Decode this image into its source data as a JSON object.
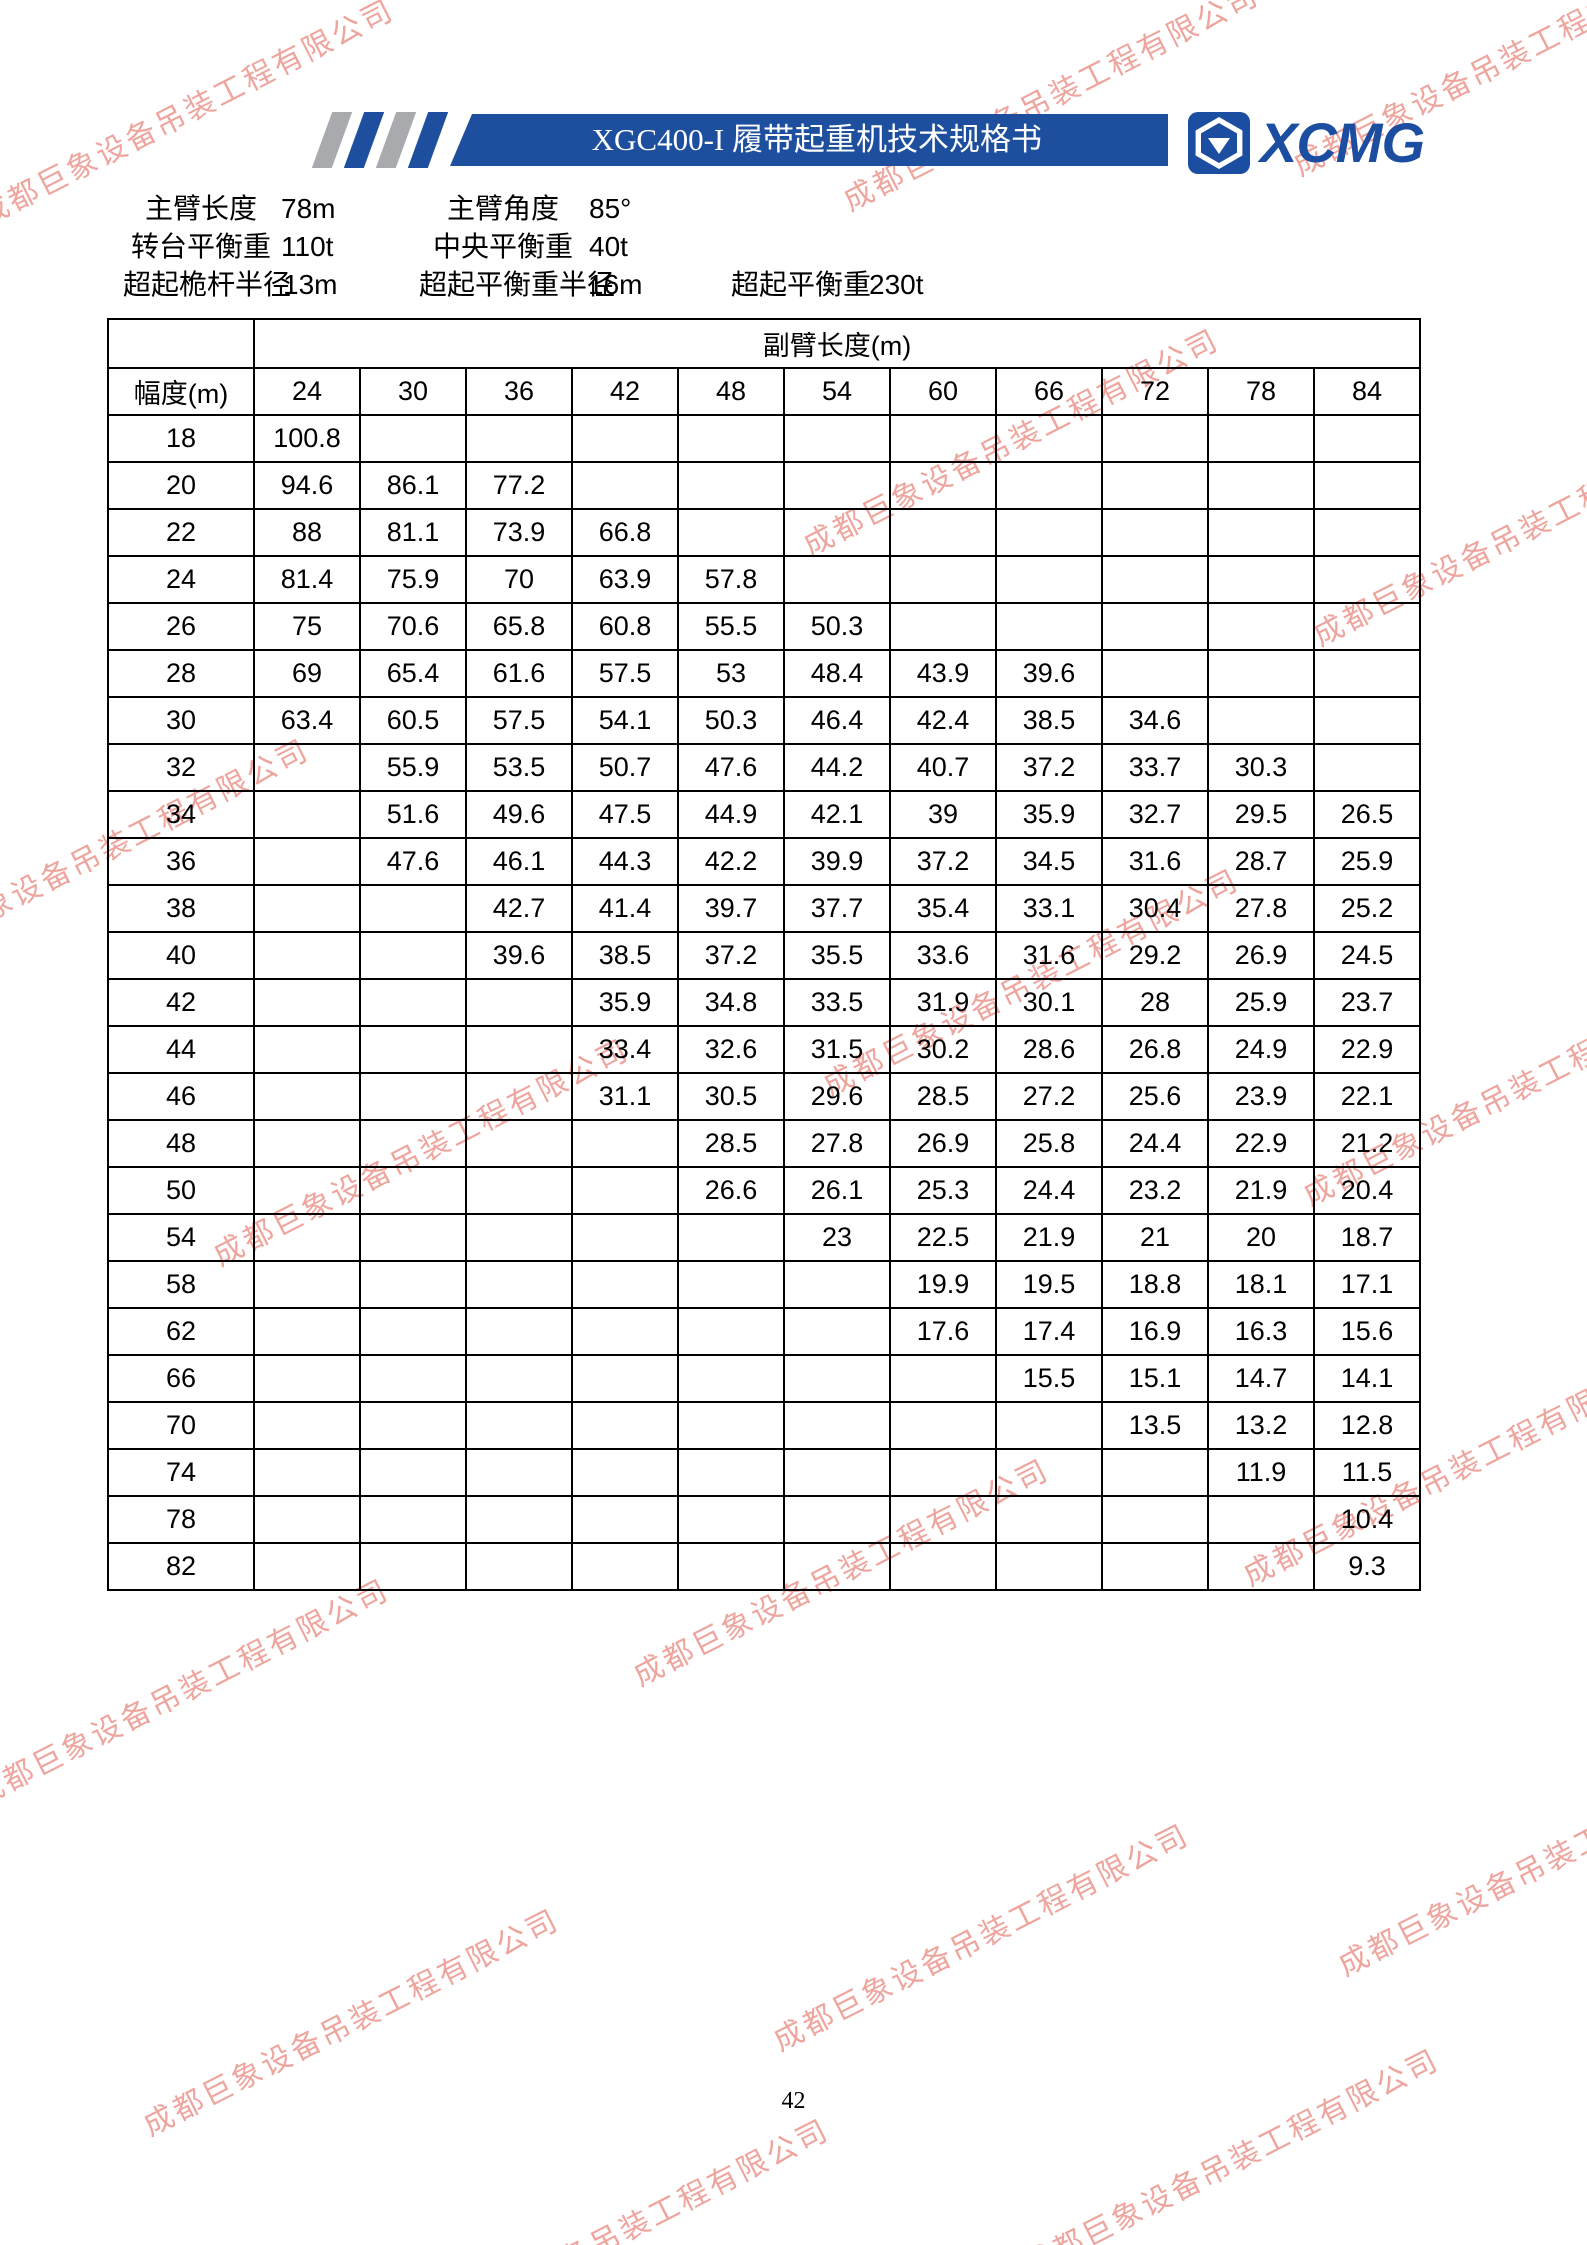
{
  "header": {
    "banner_title": "XGC400-I 履带起重机技术规格书",
    "logo_text": "XCMG"
  },
  "watermark": {
    "text": "成都巨象设备吊装工程有限公司",
    "color": "#ec968e"
  },
  "parameters": {
    "main_boom_length_label": "主臂长度",
    "main_boom_length_value": "78m",
    "main_boom_angle_label": "主臂角度",
    "main_boom_angle_value": "85°",
    "turntable_cwt_label": "转台平衡重",
    "turntable_cwt_value": "110t",
    "central_cwt_label": "中央平衡重",
    "central_cwt_value": "40t",
    "superlift_mast_radius_label": "超起桅杆半径",
    "superlift_mast_radius_value": "13m",
    "superlift_cwt_radius_label": "超起平衡重半径",
    "superlift_cwt_radius_value": "16m",
    "superlift_cwt_label": "超起平衡重",
    "superlift_cwt_value": "230t"
  },
  "table": {
    "jib_header": "副臂长度(m)",
    "radius_header": "幅度(m)",
    "jib_lengths": [
      "24",
      "30",
      "36",
      "42",
      "48",
      "54",
      "60",
      "66",
      "72",
      "78",
      "84"
    ],
    "rows": [
      {
        "radius": "18",
        "values": [
          "100.8",
          "",
          "",
          "",
          "",
          "",
          "",
          "",
          "",
          "",
          ""
        ]
      },
      {
        "radius": "20",
        "values": [
          "94.6",
          "86.1",
          "77.2",
          "",
          "",
          "",
          "",
          "",
          "",
          "",
          ""
        ]
      },
      {
        "radius": "22",
        "values": [
          "88",
          "81.1",
          "73.9",
          "66.8",
          "",
          "",
          "",
          "",
          "",
          "",
          ""
        ]
      },
      {
        "radius": "24",
        "values": [
          "81.4",
          "75.9",
          "70",
          "63.9",
          "57.8",
          "",
          "",
          "",
          "",
          "",
          ""
        ]
      },
      {
        "radius": "26",
        "values": [
          "75",
          "70.6",
          "65.8",
          "60.8",
          "55.5",
          "50.3",
          "",
          "",
          "",
          "",
          ""
        ]
      },
      {
        "radius": "28",
        "values": [
          "69",
          "65.4",
          "61.6",
          "57.5",
          "53",
          "48.4",
          "43.9",
          "39.6",
          "",
          "",
          ""
        ]
      },
      {
        "radius": "30",
        "values": [
          "63.4",
          "60.5",
          "57.5",
          "54.1",
          "50.3",
          "46.4",
          "42.4",
          "38.5",
          "34.6",
          "",
          ""
        ]
      },
      {
        "radius": "32",
        "values": [
          "",
          "55.9",
          "53.5",
          "50.7",
          "47.6",
          "44.2",
          "40.7",
          "37.2",
          "33.7",
          "30.3",
          ""
        ]
      },
      {
        "radius": "34",
        "values": [
          "",
          "51.6",
          "49.6",
          "47.5",
          "44.9",
          "42.1",
          "39",
          "35.9",
          "32.7",
          "29.5",
          "26.5"
        ]
      },
      {
        "radius": "36",
        "values": [
          "",
          "47.6",
          "46.1",
          "44.3",
          "42.2",
          "39.9",
          "37.2",
          "34.5",
          "31.6",
          "28.7",
          "25.9"
        ]
      },
      {
        "radius": "38",
        "values": [
          "",
          "",
          "42.7",
          "41.4",
          "39.7",
          "37.7",
          "35.4",
          "33.1",
          "30.4",
          "27.8",
          "25.2"
        ]
      },
      {
        "radius": "40",
        "values": [
          "",
          "",
          "39.6",
          "38.5",
          "37.2",
          "35.5",
          "33.6",
          "31.6",
          "29.2",
          "26.9",
          "24.5"
        ]
      },
      {
        "radius": "42",
        "values": [
          "",
          "",
          "",
          "35.9",
          "34.8",
          "33.5",
          "31.9",
          "30.1",
          "28",
          "25.9",
          "23.7"
        ]
      },
      {
        "radius": "44",
        "values": [
          "",
          "",
          "",
          "33.4",
          "32.6",
          "31.5",
          "30.2",
          "28.6",
          "26.8",
          "24.9",
          "22.9"
        ]
      },
      {
        "radius": "46",
        "values": [
          "",
          "",
          "",
          "31.1",
          "30.5",
          "29.6",
          "28.5",
          "27.2",
          "25.6",
          "23.9",
          "22.1"
        ]
      },
      {
        "radius": "48",
        "values": [
          "",
          "",
          "",
          "",
          "28.5",
          "27.8",
          "26.9",
          "25.8",
          "24.4",
          "22.9",
          "21.2"
        ]
      },
      {
        "radius": "50",
        "values": [
          "",
          "",
          "",
          "",
          "26.6",
          "26.1",
          "25.3",
          "24.4",
          "23.2",
          "21.9",
          "20.4"
        ]
      },
      {
        "radius": "54",
        "values": [
          "",
          "",
          "",
          "",
          "",
          "23",
          "22.5",
          "21.9",
          "21",
          "20",
          "18.7"
        ]
      },
      {
        "radius": "58",
        "values": [
          "",
          "",
          "",
          "",
          "",
          "",
          "19.9",
          "19.5",
          "18.8",
          "18.1",
          "17.1"
        ]
      },
      {
        "radius": "62",
        "values": [
          "",
          "",
          "",
          "",
          "",
          "",
          "17.6",
          "17.4",
          "16.9",
          "16.3",
          "15.6"
        ]
      },
      {
        "radius": "66",
        "values": [
          "",
          "",
          "",
          "",
          "",
          "",
          "",
          "15.5",
          "15.1",
          "14.7",
          "14.1"
        ]
      },
      {
        "radius": "70",
        "values": [
          "",
          "",
          "",
          "",
          "",
          "",
          "",
          "",
          "13.5",
          "13.2",
          "12.8"
        ]
      },
      {
        "radius": "74",
        "values": [
          "",
          "",
          "",
          "",
          "",
          "",
          "",
          "",
          "",
          "11.9",
          "11.5"
        ]
      },
      {
        "radius": "78",
        "values": [
          "",
          "",
          "",
          "",
          "",
          "",
          "",
          "",
          "",
          "",
          "10.4"
        ]
      },
      {
        "radius": "82",
        "values": [
          "",
          "",
          "",
          "",
          "",
          "",
          "",
          "",
          "",
          "",
          "9.3"
        ]
      }
    ]
  },
  "footer": {
    "page_number": "42"
  }
}
